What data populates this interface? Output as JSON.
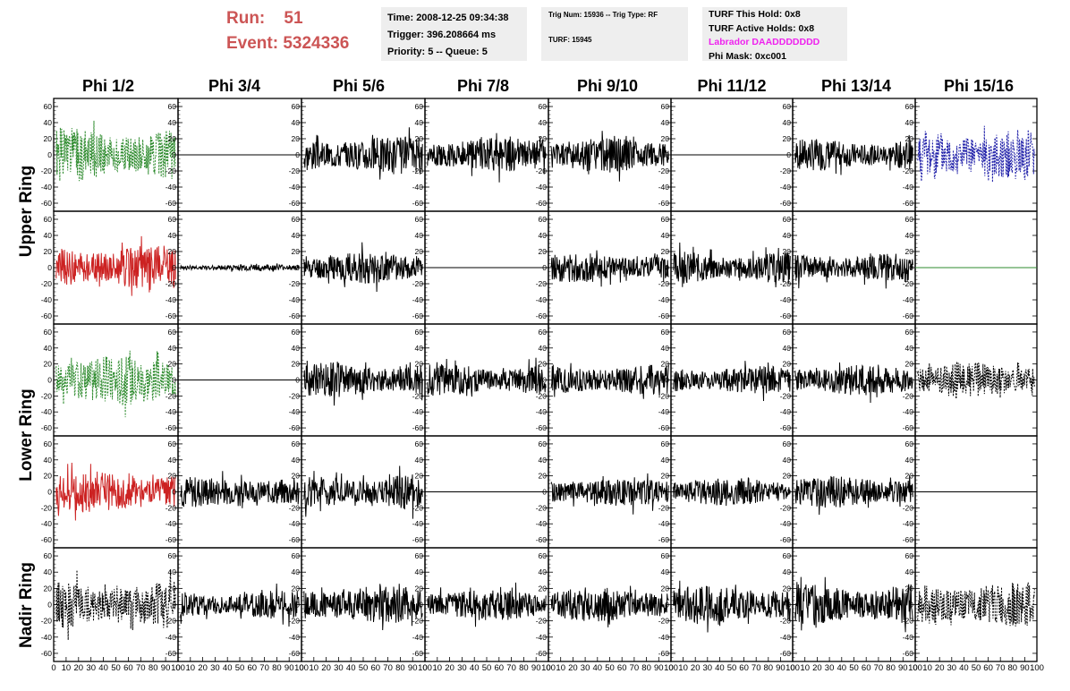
{
  "header": {
    "run_label": "Run:",
    "run_value": "51",
    "event_label": "Event:",
    "event_value": "5324336",
    "time": "Time: 2008-12-25 09:34:38",
    "trigger": "Trigger: 396.208664 ms",
    "priority": "Priority: 5 -- Queue: 5",
    "trig_num": "Trig Num: 15936 -- Trig Type: RF",
    "turf": "TURF: 15945",
    "turf_this_hold": "TURF This Hold: 0x8",
    "turf_active_holds": "TURF Active Holds: 0x8",
    "labrador": "Labrador DAADDDDDDD",
    "phi_mask": "Phi Mask: 0xc001"
  },
  "colors": {
    "run_text": "#cc5555",
    "labrador_text": "#ee22ee",
    "green_trace": "#2e8b2e",
    "red_trace": "#cc2222",
    "blue_trace": "#2222aa",
    "black_trace": "#000000"
  },
  "columns": [
    "Phi 1/2",
    "Phi 3/4",
    "Phi 5/6",
    "Phi 7/8",
    "Phi 9/10",
    "Phi 11/12",
    "Phi 13/14",
    "Phi 15/16"
  ],
  "rows": [
    "Upper Ring",
    "Lower Ring",
    "Nadir Ring"
  ],
  "chart_data": {
    "type": "line",
    "description_rows": [
      "upper-v",
      "upper-h",
      "lower-v",
      "lower-h",
      "nadir"
    ],
    "xlim": [
      0,
      100
    ],
    "ylim": [
      -70,
      70
    ],
    "y_ticks": [
      -60,
      -40,
      -20,
      0,
      20,
      40,
      60
    ],
    "x_ticks": [
      0,
      10,
      20,
      30,
      40,
      50,
      60,
      70,
      80,
      90,
      100
    ],
    "panels": [
      [
        {
          "style": "dashed",
          "color": "green",
          "amp": 34,
          "seed": 1
        },
        {
          "style": "flat",
          "color": "black",
          "amp": 0,
          "seed": 2
        },
        {
          "style": "solid",
          "color": "black",
          "amp": 24,
          "seed": 3
        },
        {
          "style": "solid",
          "color": "black",
          "amp": 22,
          "seed": 4
        },
        {
          "style": "solid",
          "color": "black",
          "amp": 22,
          "seed": 5
        },
        {
          "style": "flat",
          "color": "black",
          "amp": 0,
          "seed": 6
        },
        {
          "style": "solid",
          "color": "black",
          "amp": 20,
          "seed": 7
        },
        {
          "style": "dashed",
          "color": "blue",
          "amp": 34,
          "seed": 8
        }
      ],
      [
        {
          "style": "solid",
          "color": "red",
          "amp": 28,
          "seed": 9
        },
        {
          "style": "solid",
          "color": "black",
          "amp": 4,
          "seed": 10
        },
        {
          "style": "solid",
          "color": "black",
          "amp": 20,
          "seed": 11
        },
        {
          "style": "flat",
          "color": "black",
          "amp": 0,
          "seed": 12
        },
        {
          "style": "solid",
          "color": "black",
          "amp": 18,
          "seed": 13
        },
        {
          "style": "solid",
          "color": "black",
          "amp": 20,
          "seed": 14
        },
        {
          "style": "solid",
          "color": "black",
          "amp": 18,
          "seed": 15
        },
        {
          "style": "flat",
          "color": "green",
          "amp": 0,
          "seed": 16
        }
      ],
      [
        {
          "style": "dashed",
          "color": "green",
          "amp": 32,
          "seed": 17
        },
        {
          "style": "flat",
          "color": "black",
          "amp": 0,
          "seed": 18
        },
        {
          "style": "solid",
          "color": "black",
          "amp": 22,
          "seed": 19
        },
        {
          "style": "solid",
          "color": "black",
          "amp": 20,
          "seed": 20
        },
        {
          "style": "solid",
          "color": "black",
          "amp": 20,
          "seed": 21
        },
        {
          "style": "solid",
          "color": "black",
          "amp": 18,
          "seed": 22
        },
        {
          "style": "solid",
          "color": "black",
          "amp": 20,
          "seed": 23
        },
        {
          "style": "dashed",
          "color": "black",
          "amp": 22,
          "seed": 24
        }
      ],
      [
        {
          "style": "solid",
          "color": "red",
          "amp": 26,
          "seed": 25
        },
        {
          "style": "solid",
          "color": "black",
          "amp": 20,
          "seed": 26
        },
        {
          "style": "solid",
          "color": "black",
          "amp": 22,
          "seed": 27
        },
        {
          "style": "flat",
          "color": "black",
          "amp": 0,
          "seed": 28
        },
        {
          "style": "solid",
          "color": "black",
          "amp": 18,
          "seed": 29
        },
        {
          "style": "solid",
          "color": "black",
          "amp": 18,
          "seed": 30
        },
        {
          "style": "solid",
          "color": "black",
          "amp": 20,
          "seed": 31
        },
        {
          "style": "flat",
          "color": "black",
          "amp": 0,
          "seed": 32
        }
      ],
      [
        {
          "style": "dashed",
          "color": "black",
          "amp": 30,
          "seed": 33
        },
        {
          "style": "solid",
          "color": "black",
          "amp": 18,
          "seed": 34
        },
        {
          "style": "solid",
          "color": "black",
          "amp": 24,
          "seed": 35
        },
        {
          "style": "solid",
          "color": "black",
          "amp": 20,
          "seed": 36
        },
        {
          "style": "solid",
          "color": "black",
          "amp": 22,
          "seed": 37
        },
        {
          "style": "solid",
          "color": "black",
          "amp": 24,
          "seed": 38
        },
        {
          "style": "solid",
          "color": "black",
          "amp": 26,
          "seed": 39
        },
        {
          "style": "dashed",
          "color": "black",
          "amp": 28,
          "seed": 40
        }
      ]
    ]
  }
}
